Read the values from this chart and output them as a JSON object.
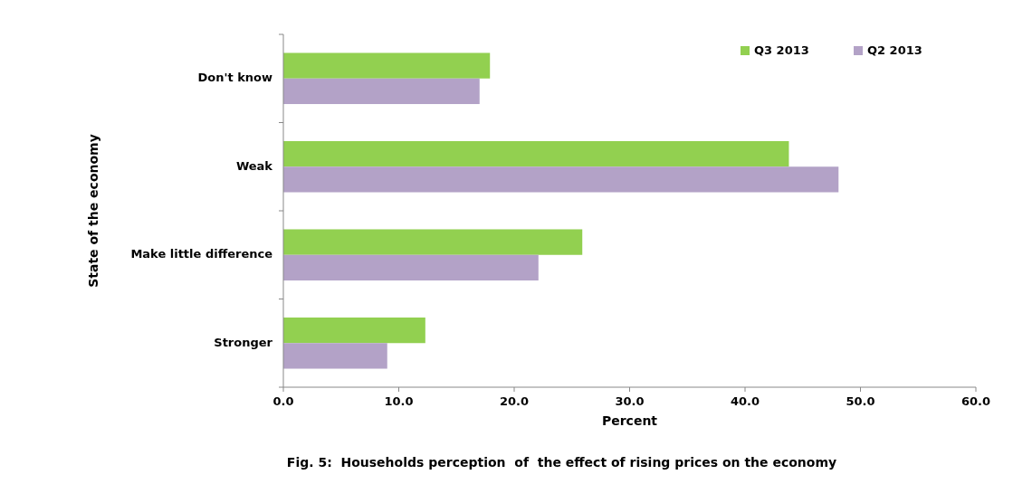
{
  "chart_data": {
    "type": "bar",
    "orientation": "horizontal",
    "title": "Fig. 5:  Households perception  of  the effect of rising prices on the economy",
    "xlabel": "Percent",
    "ylabel": "State of the economy",
    "categories": [
      "Don't know",
      "Weak",
      "Make little difference",
      "Stronger"
    ],
    "series": [
      {
        "name": "Q3 2013",
        "color": "#92d050",
        "values": [
          17.9,
          43.8,
          25.9,
          12.3
        ]
      },
      {
        "name": "Q2 2013",
        "color": "#b3a2c7",
        "values": [
          17.0,
          48.1,
          22.1,
          9.0
        ]
      }
    ],
    "xlim": [
      0,
      60
    ],
    "xticks": [
      {
        "value": 0,
        "label": "0.0"
      },
      {
        "value": 10,
        "label": "10.0"
      },
      {
        "value": 20,
        "label": "20.0"
      },
      {
        "value": 30,
        "label": "30.0"
      },
      {
        "value": 40,
        "label": "40.0"
      },
      {
        "value": 50,
        "label": "50.0"
      },
      {
        "value": 60,
        "label": "60.0"
      }
    ],
    "grid": false,
    "legend": "top right"
  }
}
